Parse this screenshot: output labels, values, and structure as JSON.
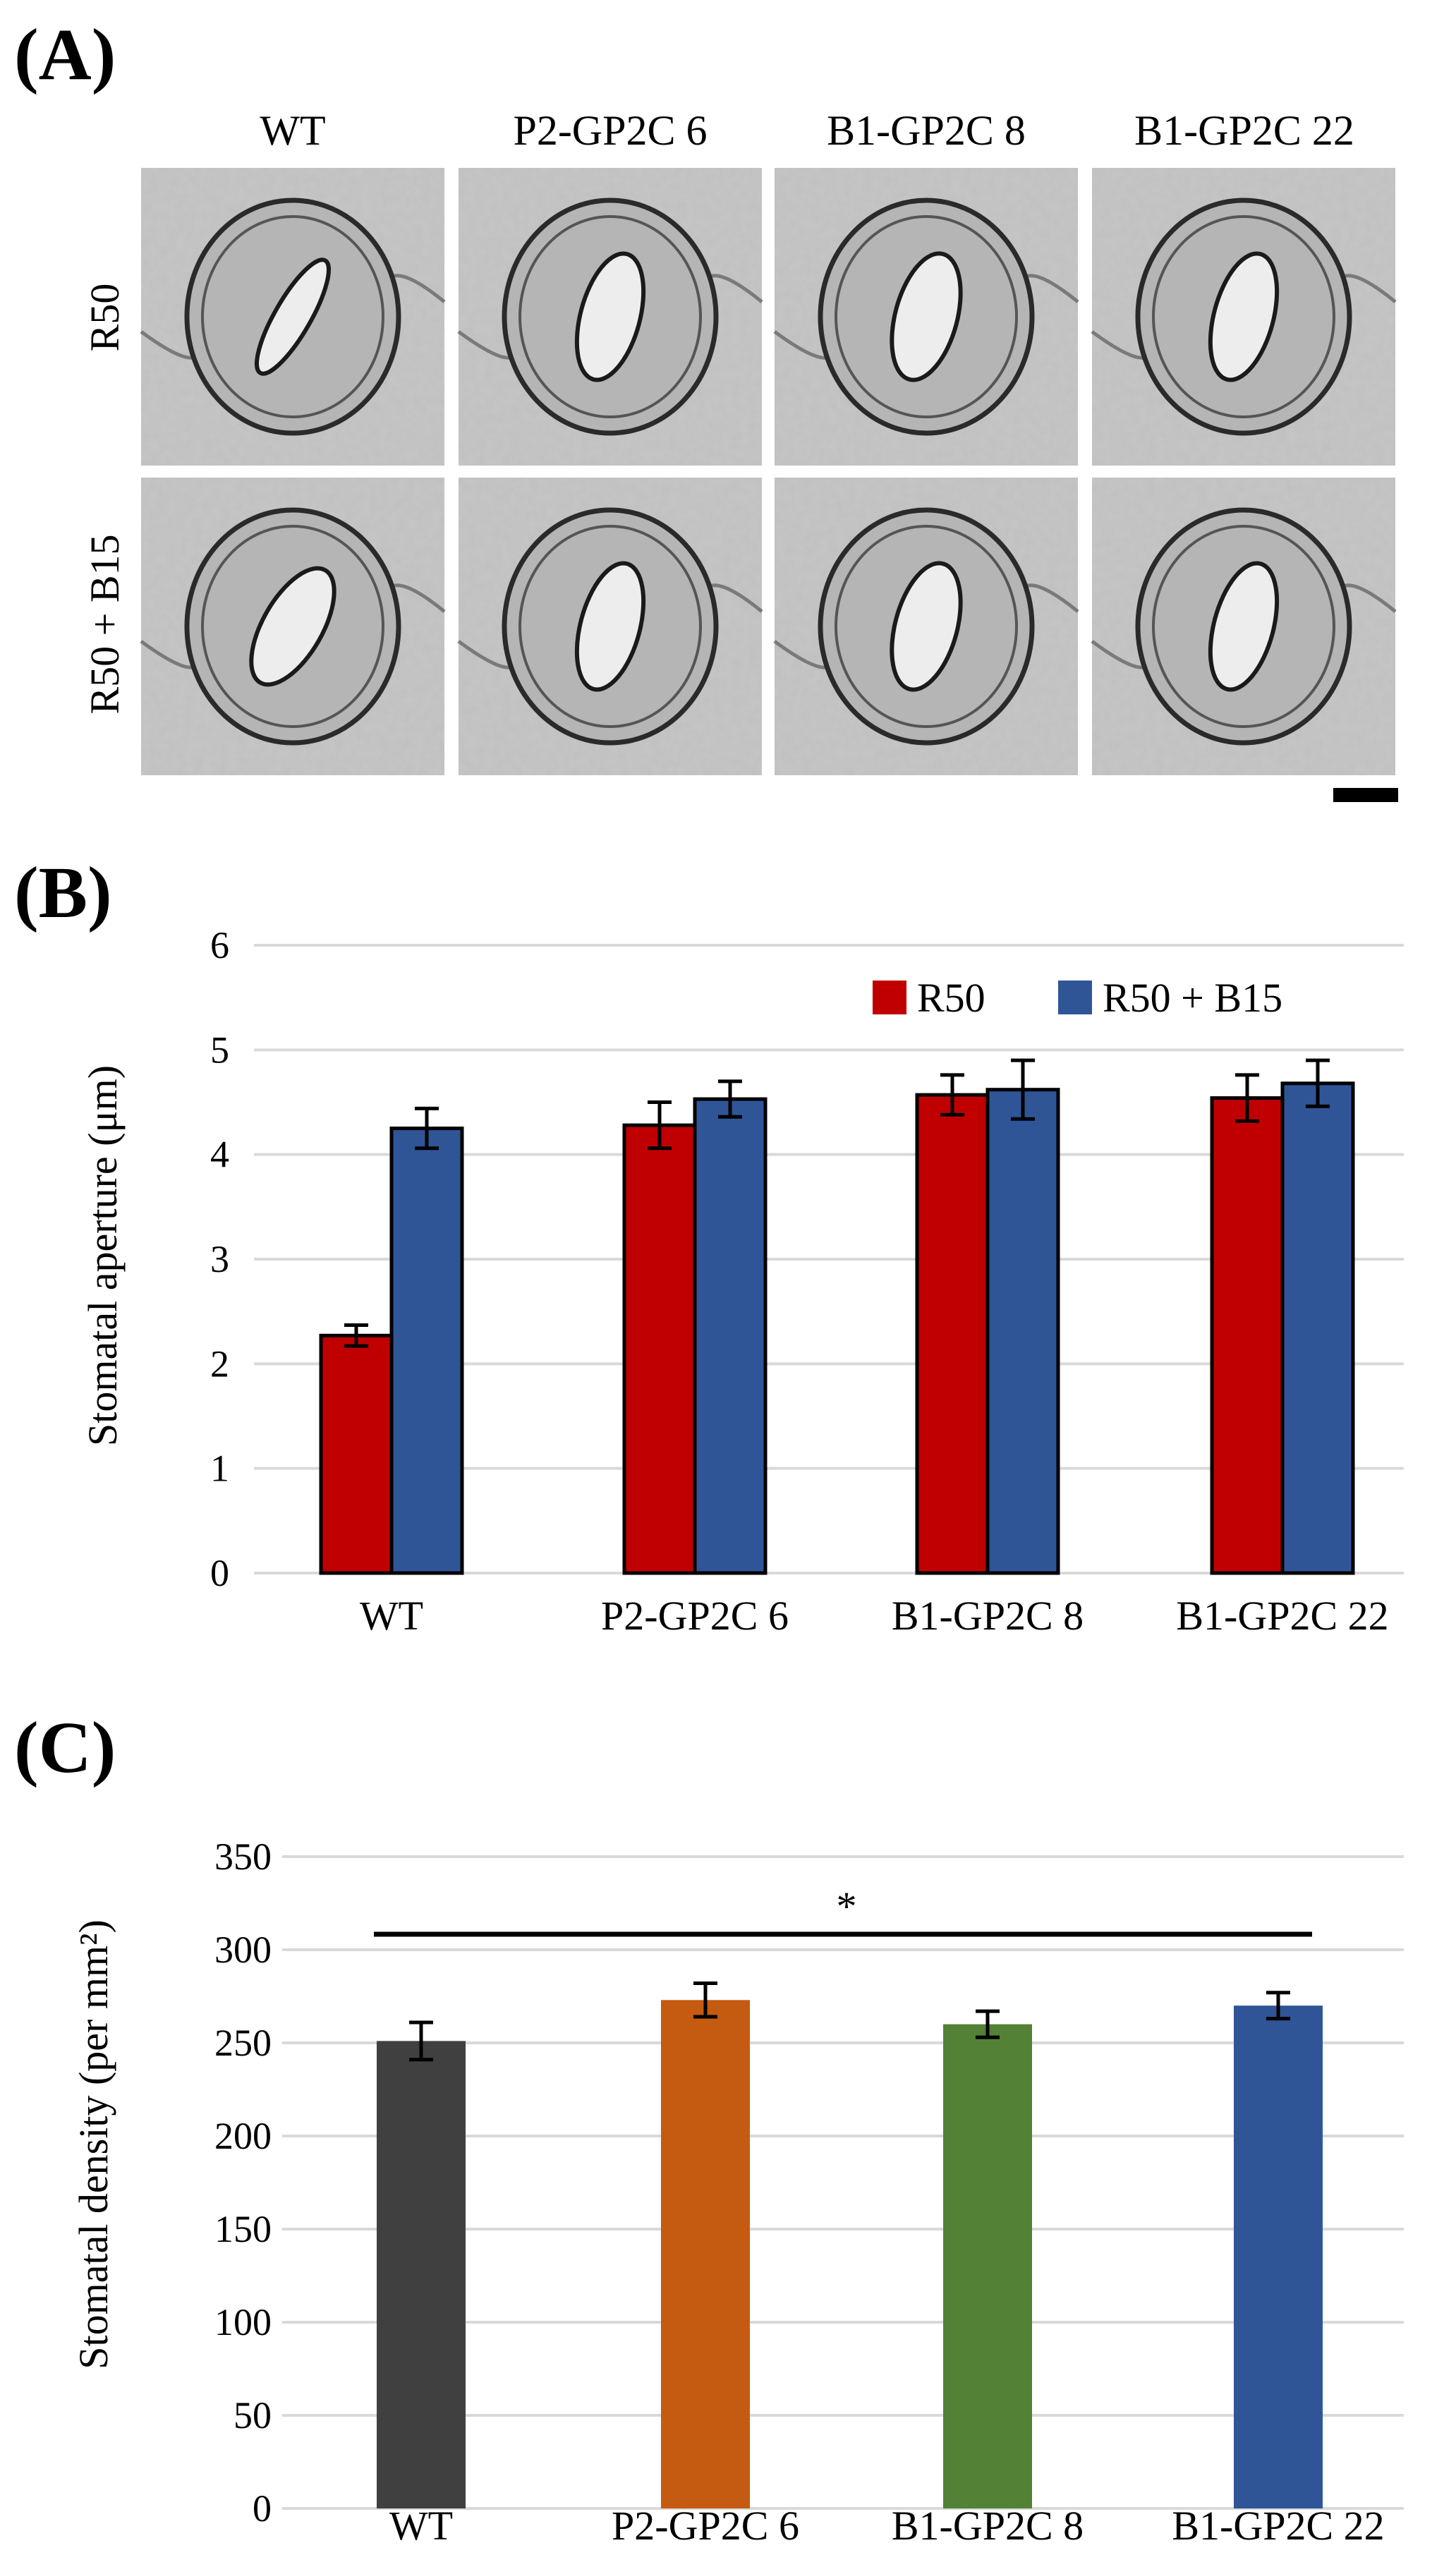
{
  "panels": {
    "a": {
      "letter": "(A)"
    },
    "b": {
      "letter": "(B)"
    },
    "c": {
      "letter": "(C)"
    }
  },
  "micrographs": {
    "columns": [
      "WT",
      "P2-GP2C 6",
      "B1-GP2C 8",
      "B1-GP2C 22"
    ],
    "rows": [
      "R50",
      "R50 + B15"
    ],
    "open_fraction": [
      [
        0.28,
        0.55,
        0.58,
        0.55
      ],
      [
        0.55,
        0.55,
        0.58,
        0.55
      ]
    ]
  },
  "colors": {
    "r50": "#C00000",
    "r50_b15": "#2F5597",
    "wt": "#404040",
    "p2": "#C55A11",
    "b1_8": "#538135",
    "b1_22": "#2F5597"
  },
  "chart_data": [
    {
      "type": "bar",
      "panel": "(B)",
      "categories": [
        "WT",
        "P2-GP2C 6",
        "B1-GP2C 8",
        "B1-GP2C 22"
      ],
      "series": [
        {
          "name": "R50",
          "values": [
            2.27,
            4.28,
            4.57,
            4.54
          ],
          "errors": [
            0.1,
            0.22,
            0.19,
            0.22
          ],
          "color": "#C00000"
        },
        {
          "name": "R50 + B15",
          "values": [
            4.25,
            4.53,
            4.62,
            4.68
          ],
          "errors": [
            0.19,
            0.17,
            0.28,
            0.22
          ],
          "color": "#2F5597"
        }
      ],
      "ylabel": "Stomatal aperture (μm)",
      "ylim": [
        0,
        6
      ],
      "yticks": [
        "0",
        "1",
        "2",
        "3",
        "4",
        "5",
        "6"
      ],
      "legend_position": "top-right",
      "grid": true
    },
    {
      "type": "bar",
      "panel": "(C)",
      "categories": [
        "WT",
        "P2-GP2C 6",
        "B1-GP2C 8",
        "B1-GP2C 22"
      ],
      "values": [
        251,
        273,
        260,
        270
      ],
      "errors": [
        10,
        9,
        7,
        7
      ],
      "colors": [
        "#404040",
        "#C55A11",
        "#538135",
        "#2F5597"
      ],
      "ylabel": "Stomatal density (per mm²)",
      "ylim": [
        0,
        350
      ],
      "yticks": [
        "0",
        "50",
        "100",
        "150",
        "200",
        "250",
        "300",
        "350"
      ],
      "annotation": "*",
      "grid": true
    }
  ],
  "scalebar": {
    "present": true
  }
}
